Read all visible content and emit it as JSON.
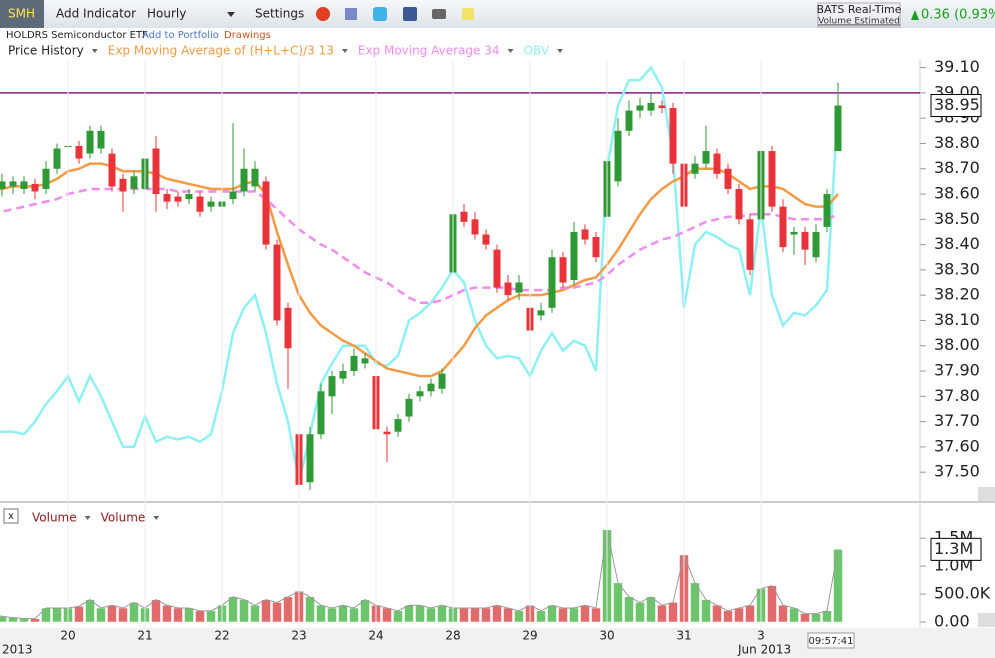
{
  "toolbar": {
    "symbol": "SMH",
    "buttons": [
      "Add Indicator",
      "Hourly",
      "Settings"
    ],
    "feed": "BATS Real-Time",
    "feed_note": "Volume Estimated",
    "change": "0.36 (0.93%)"
  },
  "subheader": {
    "name": "HOLDRS Semiconductor ETF",
    "links": [
      "Add to Portfolio",
      "Drawings"
    ]
  },
  "chart_data": [
    {
      "type": "candlestick",
      "ylim": [
        37.39,
        39.13
      ],
      "yticks": [
        {
          "value": 37.5,
          "label": "37.50"
        },
        {
          "value": 37.6,
          "label": "37.60"
        },
        {
          "value": 37.7,
          "label": "37.70"
        },
        {
          "value": 37.8,
          "label": "37.80"
        },
        {
          "value": 37.9,
          "label": "37.90"
        },
        {
          "value": 38,
          "label": "38.00"
        },
        {
          "value": 38.1,
          "label": "38.10"
        },
        {
          "value": 38.2,
          "label": "38.20"
        },
        {
          "value": 38.3,
          "label": "38.30"
        },
        {
          "value": 38.4,
          "label": "38.40"
        },
        {
          "value": 38.5,
          "label": "38.50"
        },
        {
          "value": 38.6,
          "label": "38.60"
        },
        {
          "value": 38.7,
          "label": "38.70"
        },
        {
          "value": 38.8,
          "label": "38.80"
        },
        {
          "value": 38.9,
          "label": "38.90"
        },
        {
          "value": 39,
          "label": "39.00"
        },
        {
          "value": 39.1,
          "label": "39.10"
        }
      ],
      "categories": [
        null,
        null,
        null,
        null,
        null,
        null,
        null,
        "20",
        null,
        null,
        null,
        null,
        null,
        null,
        "21",
        null,
        null,
        null,
        null,
        null,
        null,
        "22",
        null,
        null,
        null,
        null,
        null,
        null,
        "23",
        null,
        null,
        null,
        null,
        null,
        null,
        "24",
        null,
        null,
        null,
        null,
        null,
        null,
        "28",
        null,
        null,
        null,
        null,
        null,
        null,
        "29",
        null,
        null,
        null,
        null,
        null,
        null,
        "30",
        null,
        null,
        null,
        null,
        null,
        null,
        "31",
        null,
        null,
        null,
        null,
        null,
        null,
        "3",
        null,
        null,
        null,
        null,
        null,
        null,
        null
      ],
      "hline": 39.0,
      "hline_color": "#8b1a8b",
      "last_label": "38.95",
      "series": [
        {
          "name": "Price History",
          "up_color": "#2f9a35",
          "down_color": "#e8333a",
          "open": [
            38.62,
            38.62,
            38.63,
            38.62,
            38.64,
            38.62,
            38.7,
            38.79,
            38.79,
            38.76,
            38.78,
            38.76,
            38.66,
            38.62,
            38.62,
            38.78,
            38.6,
            38.59,
            38.58,
            38.59,
            38.55,
            38.55,
            38.58,
            38.61,
            38.63,
            38.65,
            38.4,
            38.15,
            37.65,
            37.46,
            37.65,
            37.8,
            37.87,
            37.9,
            37.93,
            37.88,
            37.66,
            37.66,
            37.72,
            37.8,
            37.82,
            37.83,
            38.29,
            38.53,
            38.5,
            38.44,
            38.38,
            38.25,
            38.21,
            38.15,
            38.12,
            38.15,
            38.35,
            38.26,
            38.46,
            38.43,
            38.51,
            38.65,
            38.85,
            38.93,
            38.93,
            38.95,
            38.94,
            38.72,
            38.68,
            38.72,
            38.76,
            38.7,
            38.62,
            38.5,
            38.5,
            38.77,
            38.55,
            38.44,
            38.45,
            38.35,
            38.47,
            38.77
          ],
          "high": [
            38.7,
            38.68,
            38.67,
            38.67,
            38.66,
            38.73,
            38.8,
            38.88,
            38.81,
            38.87,
            38.87,
            38.78,
            38.68,
            38.69,
            38.8,
            38.83,
            38.62,
            38.61,
            38.62,
            38.61,
            38.59,
            38.59,
            38.88,
            38.78,
            38.73,
            38.67,
            38.42,
            38.17,
            37.68,
            37.68,
            37.85,
            37.9,
            37.93,
            37.99,
            37.97,
            37.9,
            37.68,
            37.73,
            37.81,
            37.84,
            37.87,
            37.91,
            38.55,
            38.56,
            38.53,
            38.46,
            38.4,
            38.28,
            38.28,
            38.17,
            38.17,
            38.38,
            38.37,
            38.49,
            38.48,
            38.45,
            38.78,
            38.9,
            38.97,
            38.98,
            39.0,
            38.97,
            38.96,
            38.74,
            38.75,
            38.87,
            38.78,
            38.72,
            38.64,
            38.52,
            38.88,
            38.79,
            38.58,
            38.47,
            38.47,
            38.48,
            38.62,
            39.04
          ],
          "low": [
            38.58,
            38.59,
            38.6,
            38.6,
            38.58,
            38.6,
            38.68,
            38.76,
            38.72,
            38.74,
            38.76,
            38.61,
            38.53,
            38.6,
            38.6,
            38.53,
            38.54,
            38.55,
            38.56,
            38.51,
            38.53,
            38.4,
            38.56,
            38.59,
            38.61,
            38.38,
            38.08,
            37.83,
            37.43,
            37.43,
            37.63,
            37.73,
            37.85,
            37.88,
            37.91,
            37.65,
            37.54,
            37.64,
            37.7,
            37.78,
            37.8,
            37.81,
            38.27,
            38.47,
            38.42,
            38.38,
            38.21,
            38.18,
            38.18,
            38.01,
            38.1,
            38.13,
            38.23,
            38.24,
            38.4,
            38.33,
            38.49,
            38.63,
            38.83,
            38.9,
            38.91,
            38.92,
            38.68,
            38.53,
            38.66,
            38.7,
            38.66,
            38.6,
            38.48,
            38.28,
            38.45,
            38.53,
            38.37,
            38.36,
            38.32,
            38.33,
            38.45,
            38.77
          ],
          "close": [
            38.66,
            38.65,
            38.65,
            38.65,
            38.61,
            38.7,
            38.78,
            38.79,
            38.74,
            38.85,
            38.85,
            38.63,
            38.61,
            38.67,
            38.74,
            38.6,
            38.57,
            38.57,
            38.6,
            38.53,
            38.57,
            38.57,
            38.61,
            38.7,
            38.7,
            38.4,
            38.1,
            37.99,
            37.45,
            37.65,
            37.82,
            37.88,
            37.9,
            37.96,
            37.95,
            37.67,
            37.65,
            37.71,
            37.79,
            37.82,
            37.85,
            37.89,
            38.52,
            38.49,
            38.44,
            38.4,
            38.23,
            38.2,
            38.25,
            38.06,
            38.14,
            38.35,
            38.25,
            38.45,
            38.42,
            38.35,
            38.73,
            38.85,
            38.93,
            38.95,
            38.96,
            38.94,
            38.72,
            38.55,
            38.72,
            38.77,
            38.68,
            38.62,
            38.5,
            38.3,
            38.77,
            38.55,
            38.39,
            38.45,
            38.38,
            38.45,
            38.6,
            38.95
          ]
        },
        {
          "name": "Exp Moving Average of (H+L+C)/3 13",
          "color": "#f39a45",
          "dashed": false,
          "values": [
            38.62,
            38.62,
            38.63,
            38.63,
            38.63,
            38.64,
            38.66,
            38.69,
            38.7,
            38.72,
            38.72,
            38.71,
            38.69,
            38.69,
            38.69,
            38.68,
            38.66,
            38.65,
            38.64,
            38.63,
            38.62,
            38.62,
            38.62,
            38.64,
            38.65,
            38.6,
            38.45,
            38.32,
            38.2,
            38.13,
            38.08,
            38.05,
            38.02,
            38.0,
            37.97,
            37.94,
            37.91,
            37.9,
            37.89,
            37.88,
            37.88,
            37.9,
            37.95,
            38.0,
            38.07,
            38.12,
            38.15,
            38.18,
            38.2,
            38.2,
            38.2,
            38.21,
            38.22,
            38.24,
            38.26,
            38.27,
            38.32,
            38.38,
            38.45,
            38.52,
            38.58,
            38.62,
            38.65,
            38.67,
            38.7,
            38.7,
            38.7,
            38.68,
            38.65,
            38.62,
            38.63,
            38.63,
            38.62,
            38.59,
            38.56,
            38.55,
            38.55,
            38.6
          ]
        },
        {
          "name": "Exp Moving Average 34",
          "color": "#f08cf0",
          "dashed": true,
          "values": [
            38.52,
            38.53,
            38.54,
            38.55,
            38.56,
            38.57,
            38.58,
            38.6,
            38.61,
            38.62,
            38.62,
            38.62,
            38.62,
            38.62,
            38.62,
            38.62,
            38.62,
            38.61,
            38.61,
            38.61,
            38.61,
            38.61,
            38.61,
            38.61,
            38.61,
            38.58,
            38.54,
            38.5,
            38.46,
            38.43,
            38.4,
            38.38,
            38.35,
            38.32,
            38.29,
            38.27,
            38.25,
            38.22,
            38.19,
            38.17,
            38.17,
            38.18,
            38.2,
            38.22,
            38.23,
            38.23,
            38.23,
            38.23,
            38.22,
            38.22,
            38.22,
            38.22,
            38.23,
            38.23,
            38.24,
            38.25,
            38.28,
            38.32,
            38.35,
            38.38,
            38.4,
            38.42,
            38.43,
            38.45,
            38.47,
            38.49,
            38.5,
            38.51,
            38.51,
            38.52,
            38.52,
            38.52,
            38.51,
            38.5,
            38.5,
            38.5,
            38.5,
            38.52
          ]
        },
        {
          "name": "OBV",
          "color": "#8ef0f2",
          "dashed": false,
          "values": [
            37.66,
            37.66,
            37.66,
            37.65,
            37.7,
            37.77,
            37.82,
            37.88,
            37.78,
            37.88,
            37.8,
            37.7,
            37.6,
            37.6,
            37.72,
            37.62,
            37.64,
            37.63,
            37.64,
            37.62,
            37.65,
            37.82,
            38.05,
            38.15,
            38.2,
            38.05,
            37.85,
            37.7,
            37.46,
            37.65,
            37.85,
            37.93,
            38.0,
            38.0,
            38.0,
            37.93,
            37.92,
            37.96,
            38.1,
            38.13,
            38.17,
            38.23,
            38.3,
            38.25,
            38.1,
            38.0,
            37.95,
            37.96,
            37.95,
            37.88,
            37.98,
            38.05,
            37.98,
            38.02,
            38.0,
            37.9,
            38.7,
            38.95,
            39.05,
            39.05,
            39.1,
            39.02,
            38.75,
            38.15,
            38.4,
            38.45,
            38.43,
            38.4,
            38.38,
            38.2,
            38.55,
            38.2,
            38.08,
            38.13,
            38.12,
            38.16,
            38.22,
            38.95
          ]
        }
      ]
    },
    {
      "type": "bar",
      "ylim": [
        0,
        1700000
      ],
      "yticks": [
        {
          "value": 0,
          "label": "0.00"
        },
        {
          "value": 500000,
          "label": "500.0K"
        },
        {
          "value": 1000000,
          "label": "1.0M"
        },
        {
          "value": 1500000,
          "label": "1.5M"
        }
      ],
      "last_label": "1.3M",
      "series": [
        {
          "name": "Volume",
          "up_color": "#6cc56c",
          "down_color": "#e26a6a",
          "values": [
            150000,
            100000,
            80000,
            60000,
            60000,
            250000,
            250000,
            250000,
            280000,
            400000,
            250000,
            300000,
            250000,
            350000,
            250000,
            400000,
            300000,
            250000,
            250000,
            200000,
            200000,
            300000,
            450000,
            400000,
            300000,
            400000,
            350000,
            450000,
            550000,
            450000,
            300000,
            250000,
            300000,
            250000,
            400000,
            300000,
            250000,
            200000,
            300000,
            300000,
            250000,
            300000,
            250000,
            250000,
            250000,
            250000,
            300000,
            250000,
            200000,
            300000,
            200000,
            300000,
            250000,
            250000,
            300000,
            250000,
            1650000,
            700000,
            450000,
            350000,
            450000,
            300000,
            350000,
            1200000,
            700000,
            400000,
            300000,
            200000,
            250000,
            300000,
            600000,
            650000,
            300000,
            250000,
            150000,
            150000,
            200000,
            1300000
          ]
        },
        {
          "name": "Volume",
          "color": "#9a9a9a"
        }
      ]
    }
  ],
  "footer": {
    "year": "2013",
    "month": "Jun 2013",
    "time": "09:57:41"
  }
}
